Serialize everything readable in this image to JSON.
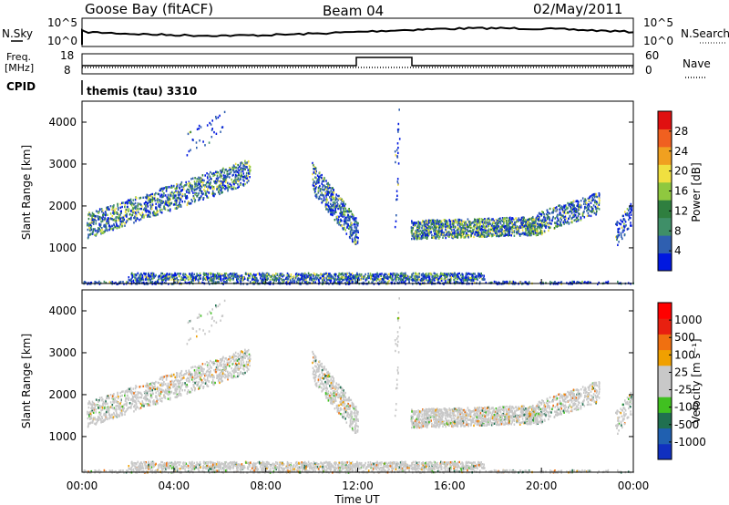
{
  "header": {
    "station": "Goose Bay (fitACF)",
    "beam": "Beam 04",
    "date": "02/May/2011"
  },
  "noise_panel": {
    "left_label": "N.Sky",
    "right_label": "N.Search",
    "left_ticks": [
      "10^5",
      "10^0"
    ],
    "right_ticks": [
      "10^5",
      "10^0"
    ]
  },
  "freq_panel": {
    "left_label_1": "Freq.",
    "left_label_2": "[MHz]",
    "left_ticks": [
      "18",
      "8"
    ],
    "right_label": "Nave",
    "right_ticks": [
      "60",
      "0"
    ]
  },
  "cpid": {
    "label": "CPID",
    "value": "themis (tau) 3310"
  },
  "colors": {
    "power_scale": [
      "#0018e0",
      "#2f5fb0",
      "#3f8f68",
      "#2f7f3f",
      "#8fc83f",
      "#f0e040",
      "#f0a020",
      "#f06020",
      "#e01010"
    ],
    "velocity_scale": [
      "#1030c0",
      "#2060b0",
      "#207050",
      "#40c020",
      "#c8c8c8",
      "#c8c8c8",
      "#f0a000",
      "#f07010",
      "#e82010",
      "#ff0000"
    ]
  },
  "chart_data": [
    {
      "type": "heatmap",
      "ylabel": "Slant Range [km]",
      "yticks": [
        "1000",
        "2000",
        "3000",
        "4000"
      ],
      "ylim": [
        150,
        4500
      ],
      "xlim": [
        0,
        24
      ],
      "colorbar_label": "Power [dB]",
      "colorbar_ticks": [
        "4",
        "8",
        "12",
        "16",
        "20",
        "24",
        "28"
      ],
      "colorbar_range": [
        0,
        32
      ]
    },
    {
      "type": "heatmap",
      "ylabel": "Slant Range [km]",
      "yticks": [
        "1000",
        "2000",
        "3000",
        "4000"
      ],
      "ylim": [
        150,
        4500
      ],
      "xlim": [
        0,
        24
      ],
      "xlabel": "Time UT",
      "xticks": [
        "00:00",
        "04:00",
        "08:00",
        "12:00",
        "16:00",
        "20:00",
        "00:00"
      ],
      "colorbar_label": "Velocity [m s⁻¹]",
      "colorbar_ticks": [
        "1000",
        "500",
        "100",
        "25",
        "-25",
        "-100",
        "-500",
        "-1000"
      ]
    }
  ]
}
